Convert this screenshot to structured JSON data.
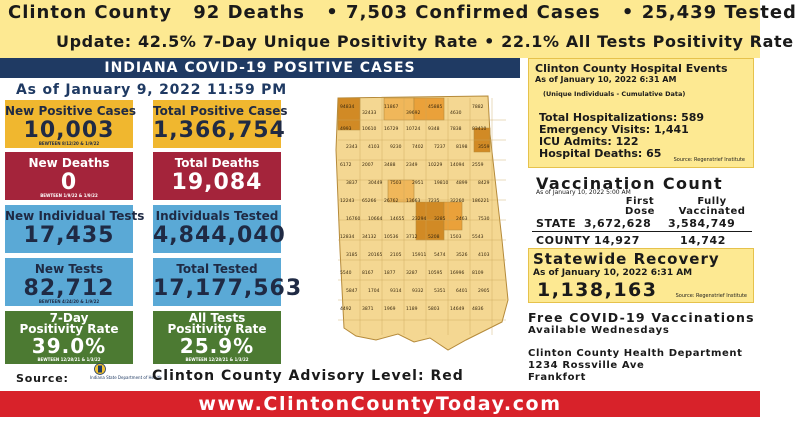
{
  "header": {
    "county": "Clinton County",
    "deaths": "92 Deaths",
    "confirmed": "• 7,503 Confirmed Cases",
    "tested": "• 25,439 Tested",
    "update": "Update: 42.5% 7-Day Unique Positivity Rate • 22.1% All Tests Positivity Rate"
  },
  "banner": "INDIANA COVID-19 POSITIVE CASES",
  "as_of": "As of January 9, 2022 11:59 PM",
  "stats": {
    "new_positive": {
      "title": "New Positive Cases",
      "value": "10,003",
      "sub": "BEWTEEN 8/12/20 & 1/9/22"
    },
    "total_positive": {
      "title": "Total Positive Cases",
      "value": "1,366,754"
    },
    "new_deaths": {
      "title": "New Deaths",
      "value": "0",
      "sub": "BEWTEEN 1/9/22 & 1/9/22"
    },
    "total_deaths": {
      "title": "Total Deaths",
      "value": "19,084"
    },
    "new_individual_tests": {
      "title": "New Individual Tests",
      "value": "17,435"
    },
    "individuals_tested": {
      "title": "Individuals Tested",
      "value": "4,844,040"
    },
    "new_tests": {
      "title": "New Tests",
      "value": "82,712",
      "sub": "BEWTEEN 4/24/20 & 1/9/22"
    },
    "total_tested": {
      "title": "Total Tested",
      "value": "17,177,563"
    },
    "pos7": {
      "title": "7-Day",
      "title2": "Positivity Rate",
      "value": "39.0%",
      "sub": "BEWTEEN 12/28/21 & 1/3/22"
    },
    "alltests": {
      "title": "All Tests",
      "title2": "Positivity Rate",
      "value": "25.9%",
      "sub": "BEWTEEN 12/28/21 & 1/3/22"
    }
  },
  "source": {
    "label": "Source:",
    "logo_text": "Indiana State Department of Health"
  },
  "advisory": "Clinton County Advisory Level: Red",
  "url": "www.ClintonCountyToday.com",
  "hospital": {
    "title": "Clinton County Hospital Events",
    "date": "As of January 10, 2022 6:31 AM",
    "note": "(Unique Individuals - Cumulative Data)",
    "lines": [
      "Total Hospitalizations: 589",
      "Emergency Visits: 1,441",
      "ICU Admits: 122",
      "Hospital Deaths: 65"
    ],
    "src": "Source: Regenstrief Institute"
  },
  "vaccination": {
    "title": "Vaccination Count",
    "date": "As of January 10, 2022 5:00 AM",
    "col1_a": "First",
    "col1_b": "Dose",
    "col2_a": "Fully",
    "col2_b": "Vaccinated",
    "state_label": "STATE",
    "state_first": "3,672,628",
    "state_full": "3,584,749",
    "county_label": "COUNTY",
    "county_first": "14,927",
    "county_full": "14,742"
  },
  "recovery": {
    "title": "Statewide Recovery",
    "date": "As of January 10, 2022 6:31 AM",
    "value": "1,138,163",
    "src": "Source: Regenstrief Institute"
  },
  "vaccines": {
    "title": "Free COVID-19 Vaccinations",
    "sub": "Available Wednesdays"
  },
  "dept": {
    "name": "Clinton County Health Department",
    "address": "1234 Rossville Ave",
    "city": "Frankfort"
  },
  "map": {
    "top_labels": [
      "94834",
      "32433",
      "11867",
      "39692",
      "45885",
      "4630",
      "7882"
    ],
    "mid_labels": [
      "4993",
      "10610",
      "16729",
      "10724",
      "9348",
      "7838",
      "83410",
      "2343",
      "4103",
      "9230",
      "7402",
      "7237",
      "8198",
      "3559",
      "6172",
      "2007",
      "3488",
      "2349",
      "10229",
      "14094",
      "2559",
      "3837",
      "30449",
      "7503",
      "2951",
      "19810",
      "4899",
      "8429",
      "12243",
      "65266",
      "26762",
      "13663",
      "7235",
      "32260",
      "186221",
      "16760",
      "10664",
      "14655",
      "23294",
      "3285",
      "2463",
      "7530",
      "12834",
      "34132",
      "10536",
      "3712",
      "5208",
      "1503",
      "5543",
      "3185",
      "20165",
      "2105",
      "15911",
      "5474",
      "3526",
      "4103",
      "5540",
      "8167",
      "1877",
      "3287",
      "10595",
      "16996",
      "8109",
      "5847",
      "1704",
      "9314",
      "9332",
      "5351",
      "6401",
      "2905",
      "4492",
      "3871",
      "1969",
      "1189",
      "5803",
      "14649",
      "4836"
    ]
  }
}
